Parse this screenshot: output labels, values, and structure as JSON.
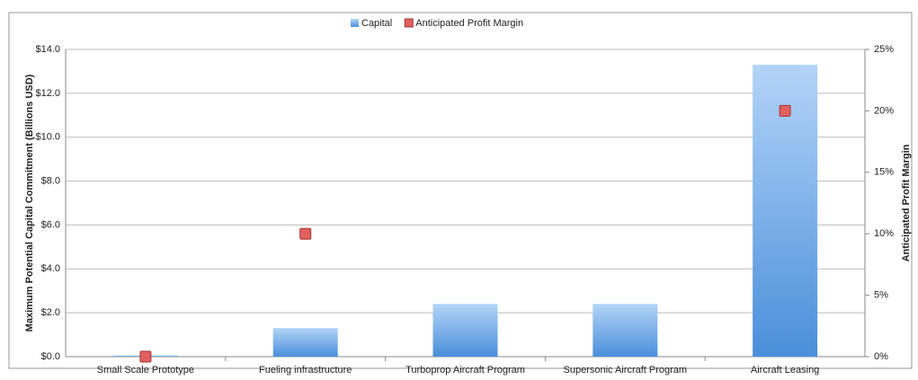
{
  "chart_data": {
    "type": "bar",
    "categories": [
      "Small Scale Prototype",
      "Fueling infrastructure",
      "Turboprop Aircraft Program",
      "Supersonic Aircraft Program",
      "Aircraft Leasing"
    ],
    "series": [
      {
        "name": "Capital",
        "type": "bar",
        "color": "#5b9be0",
        "values": [
          0.05,
          1.3,
          2.4,
          2.4,
          13.3
        ]
      },
      {
        "name": "Anticipated Profit Margin",
        "type": "scatter",
        "color": "#e06060",
        "axis": "y2",
        "values": [
          0,
          10,
          null,
          null,
          20
        ]
      }
    ],
    "y_label": "Maximum Potential Capital Commitment (Billions USD)",
    "y2_label": "Anticipated Profit Margin",
    "ylim": [
      0,
      14
    ],
    "yticks": [
      {
        "value": 0,
        "label": "$0.0"
      },
      {
        "value": 2,
        "label": "$2.0"
      },
      {
        "value": 4,
        "label": "$4.0"
      },
      {
        "value": 6,
        "label": "$6.0"
      },
      {
        "value": 8,
        "label": "$8.0"
      },
      {
        "value": 10,
        "label": "$10.0"
      },
      {
        "value": 12,
        "label": "$12.0"
      },
      {
        "value": 14,
        "label": "$14.0"
      }
    ],
    "y2lim": [
      0,
      25
    ],
    "y2ticks": [
      {
        "value": 0,
        "label": "0%"
      },
      {
        "value": 5,
        "label": "5%"
      },
      {
        "value": 10,
        "label": "10%"
      },
      {
        "value": 15,
        "label": "15%"
      },
      {
        "value": 20,
        "label": "20%"
      },
      {
        "value": 25,
        "label": "25%"
      }
    ],
    "grid": true,
    "legend": "top"
  }
}
